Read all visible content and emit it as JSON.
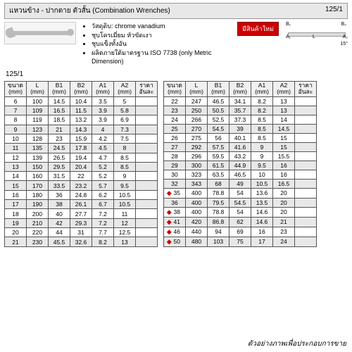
{
  "title_bar": {
    "left": "แหวนข้าง - ปากตาย ตัวสั้น (Combination Wrenches)",
    "right": "125/1"
  },
  "info": {
    "bullets": [
      "วัสดุดิบ: chrome vanadium",
      "ชุบโครเมี่ยม หัวขัดเงา",
      "ชุบแข็งทั้งอัน",
      "ผลิตภายใต้มาตรฐาน ISO 7738 (only Metric Dimension)"
    ],
    "badge": "มีสินค้าใหม่",
    "model": "125/1",
    "diagram_labels": {
      "b1": "B₁",
      "b2": "B₂",
      "a1": "A₁",
      "a2": "A₂",
      "l": "L",
      "deg": "15°"
    }
  },
  "headers": [
    "ขนาด\n(mm)",
    "L\n(mm)",
    "B1\n(mm)",
    "B2\n(mm)",
    "A1\n(mm)",
    "A2\n(mm)",
    "ราคา\nอันละ"
  ],
  "rows_left": [
    [
      "6",
      "100",
      "14.5",
      "10.4",
      "3.5",
      "5",
      ""
    ],
    [
      "7",
      "109",
      "16.5",
      "11.5",
      "3.9",
      "5.8",
      ""
    ],
    [
      "8",
      "119",
      "18.5",
      "13.2",
      "3.9",
      "6.9",
      ""
    ],
    [
      "9",
      "123",
      "21",
      "14.3",
      "4",
      "7.3",
      ""
    ],
    [
      "10",
      "128",
      "23",
      "15.9",
      "4.2",
      "7.5",
      ""
    ],
    [
      "11",
      "135",
      "24.5",
      "17.8",
      "4.5",
      "8",
      ""
    ],
    [
      "12",
      "139",
      "26.5",
      "19.4",
      "4.7",
      "8.5",
      ""
    ],
    [
      "13",
      "150",
      "29.5",
      "20.4",
      "5.2",
      "8.5",
      ""
    ],
    [
      "14",
      "160",
      "31.5",
      "22",
      "5.2",
      "9",
      ""
    ],
    [
      "15",
      "170",
      "33.5",
      "23.2",
      "5.7",
      "9.5",
      ""
    ],
    [
      "16",
      "180",
      "36",
      "24.8",
      "6.2",
      "10.5",
      ""
    ],
    [
      "17",
      "190",
      "38",
      "26.1",
      "6.7",
      "10.5",
      ""
    ],
    [
      "18",
      "200",
      "40",
      "27.7",
      "7.2",
      "11",
      ""
    ],
    [
      "19",
      "210",
      "42",
      "29.3",
      "7.2",
      "12",
      ""
    ],
    [
      "20",
      "220",
      "44",
      "31",
      "7.7",
      "12.5",
      ""
    ],
    [
      "21",
      "230",
      "45.5",
      "32.6",
      "8.2",
      "13",
      ""
    ]
  ],
  "rows_right": [
    {
      "m": false,
      "c": [
        "22",
        "247",
        "46.5",
        "34.1",
        "8.2",
        "13",
        ""
      ]
    },
    {
      "m": false,
      "c": [
        "23",
        "250",
        "50.5",
        "35.7",
        "8.2",
        "13",
        ""
      ]
    },
    {
      "m": false,
      "c": [
        "24",
        "266",
        "52.5",
        "37.3",
        "8.5",
        "14",
        ""
      ]
    },
    {
      "m": false,
      "c": [
        "25",
        "270",
        "54.5",
        "39",
        "8.5",
        "14.5",
        ""
      ]
    },
    {
      "m": false,
      "c": [
        "26",
        "275",
        "56",
        "40.1",
        "8.5",
        "15",
        ""
      ]
    },
    {
      "m": false,
      "c": [
        "27",
        "292",
        "57.5",
        "41.6",
        "9",
        "15",
        ""
      ]
    },
    {
      "m": false,
      "c": [
        "28",
        "296",
        "59.5",
        "43.2",
        "9",
        "15.5",
        ""
      ]
    },
    {
      "m": false,
      "c": [
        "29",
        "300",
        "61.5",
        "44.9",
        "9.5",
        "16",
        ""
      ]
    },
    {
      "m": false,
      "c": [
        "30",
        "323",
        "63.5",
        "46.5",
        "10",
        "16",
        ""
      ]
    },
    {
      "m": false,
      "c": [
        "32",
        "343",
        "68",
        "49",
        "10.5",
        "16.5",
        ""
      ]
    },
    {
      "m": true,
      "c": [
        "35",
        "400",
        "78.8",
        "54",
        "13.6",
        "20",
        ""
      ]
    },
    {
      "m": false,
      "c": [
        "36",
        "400",
        "79.5",
        "54.5",
        "13.5",
        "20",
        ""
      ]
    },
    {
      "m": true,
      "c": [
        "38",
        "400",
        "78.8",
        "54",
        "14.6",
        "20",
        ""
      ]
    },
    {
      "m": true,
      "c": [
        "41",
        "420",
        "86.8",
        "62",
        "14.6",
        "21",
        ""
      ]
    },
    {
      "m": true,
      "c": [
        "46",
        "440",
        "94",
        "69",
        "16",
        "23",
        ""
      ]
    },
    {
      "m": true,
      "c": [
        "50",
        "480",
        "103",
        "75",
        "17",
        "24",
        ""
      ]
    }
  ],
  "footer": "ตัวอย่างภาพเพื่อประกอบการขาย"
}
